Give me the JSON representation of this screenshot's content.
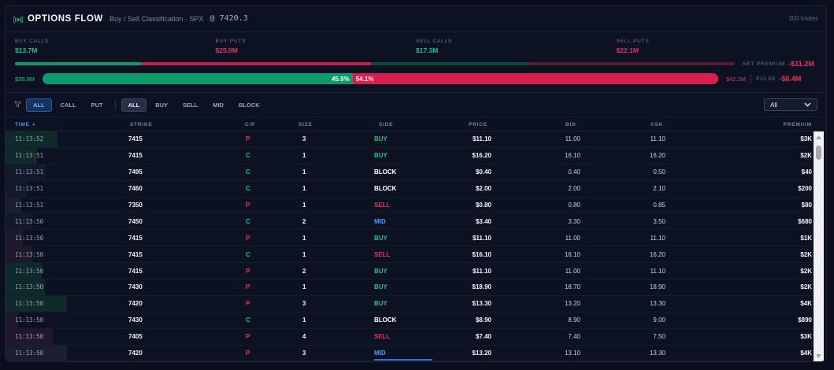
{
  "header": {
    "title": "OPTIONS FLOW",
    "subtitle": "Buy / Sell Classification · SPX",
    "price": "@ 7420.3",
    "trades": "300 trades"
  },
  "stats": [
    {
      "label": "BUY CALLS",
      "value": "$13.7M",
      "tone": "green"
    },
    {
      "label": "BUY PUTS",
      "value": "$25.0M",
      "tone": "red"
    },
    {
      "label": "SELL CALLS",
      "value": "$17.3M",
      "tone": "green"
    },
    {
      "label": "SELL PUTS",
      "value": "$22.1M",
      "tone": "red"
    }
  ],
  "net_premium": {
    "label": "NET PREMIUM",
    "value": "-$11.2M"
  },
  "pulse": {
    "left_value": "$35.9M",
    "green_pct_label": "45.9%",
    "red_pct_label": "54.1%",
    "green_fraction": 0.459,
    "right_value": "$42.2M",
    "label": "PULSE",
    "value": "-$6.4M"
  },
  "filters": {
    "type_chips": [
      "ALL",
      "CALL",
      "PUT"
    ],
    "side_chips": [
      "ALL",
      "BUY",
      "SELL",
      "MID",
      "BLOCK"
    ],
    "select_value": "All"
  },
  "columns": {
    "time": "TIME",
    "strike": "STRIKE",
    "cp": "C/P",
    "size": "SIZE",
    "side": "SIDE",
    "price": "PRICE",
    "bid": "BID",
    "ask": "ASK",
    "premium": "PREMIUM"
  },
  "rows": [
    {
      "time": "11:13:52",
      "strike": "7415",
      "cp": "P",
      "size": "3",
      "side": "BUY",
      "price": "$11.10",
      "bid": "11.00",
      "ask": "11.10",
      "premium": "$3K"
    },
    {
      "time": "11:13:51",
      "strike": "7415",
      "cp": "C",
      "size": "1",
      "side": "BUY",
      "price": "$16.20",
      "bid": "16.10",
      "ask": "16.20",
      "premium": "$2K"
    },
    {
      "time": "11:13:51",
      "strike": "7495",
      "cp": "C",
      "size": "1",
      "side": "BLOCK",
      "price": "$0.40",
      "bid": "0.40",
      "ask": "0.50",
      "premium": "$40"
    },
    {
      "time": "11:13:51",
      "strike": "7460",
      "cp": "C",
      "size": "1",
      "side": "BLOCK",
      "price": "$2.00",
      "bid": "2.00",
      "ask": "2.10",
      "premium": "$200"
    },
    {
      "time": "11:13:51",
      "strike": "7350",
      "cp": "P",
      "size": "1",
      "side": "SELL",
      "price": "$0.80",
      "bid": "0.80",
      "ask": "0.85",
      "premium": "$80"
    },
    {
      "time": "11:13:50",
      "strike": "7450",
      "cp": "C",
      "size": "2",
      "side": "MID",
      "price": "$3.40",
      "bid": "3.30",
      "ask": "3.50",
      "premium": "$680"
    },
    {
      "time": "11:13:50",
      "strike": "7415",
      "cp": "P",
      "size": "1",
      "side": "BUY",
      "price": "$11.10",
      "bid": "11.00",
      "ask": "11.10",
      "premium": "$1K"
    },
    {
      "time": "11:13:50",
      "strike": "7415",
      "cp": "C",
      "size": "1",
      "side": "SELL",
      "price": "$16.10",
      "bid": "16.10",
      "ask": "16.20",
      "premium": "$2K"
    },
    {
      "time": "11:13:50",
      "strike": "7415",
      "cp": "P",
      "size": "2",
      "side": "BUY",
      "price": "$11.10",
      "bid": "11.00",
      "ask": "11.10",
      "premium": "$2K"
    },
    {
      "time": "11:13:50",
      "strike": "7430",
      "cp": "P",
      "size": "1",
      "side": "BUY",
      "price": "$18.90",
      "bid": "18.70",
      "ask": "18.90",
      "premium": "$2K"
    },
    {
      "time": "11:13:50",
      "strike": "7420",
      "cp": "P",
      "size": "3",
      "side": "BUY",
      "price": "$13.30",
      "bid": "13.20",
      "ask": "13.30",
      "premium": "$4K"
    },
    {
      "time": "11:13:50",
      "strike": "7430",
      "cp": "C",
      "size": "1",
      "side": "BLOCK",
      "price": "$8.90",
      "bid": "8.90",
      "ask": "9.00",
      "premium": "$890"
    },
    {
      "time": "11:13:50",
      "strike": "7405",
      "cp": "P",
      "size": "4",
      "side": "SELL",
      "price": "$7.40",
      "bid": "7.40",
      "ask": "7.50",
      "premium": "$3K"
    },
    {
      "time": "11:13:50",
      "strike": "7420",
      "cp": "P",
      "size": "3",
      "side": "MID",
      "price": "$13.20",
      "bid": "13.10",
      "ask": "13.30",
      "premium": "$4K"
    }
  ],
  "colors": {
    "buy": "#15c488",
    "sell": "#e9305d",
    "mid": "#4d9bff",
    "block": "#ffffff"
  }
}
